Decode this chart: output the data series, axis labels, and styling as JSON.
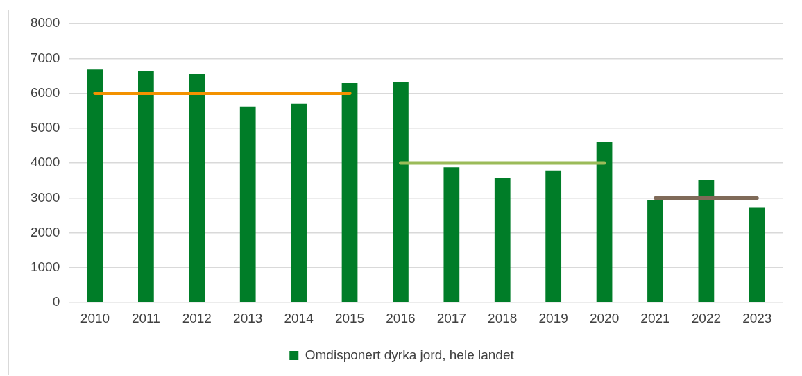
{
  "chart_data": {
    "type": "bar",
    "categories": [
      "2010",
      "2011",
      "2012",
      "2013",
      "2014",
      "2015",
      "2016",
      "2017",
      "2018",
      "2019",
      "2020",
      "2021",
      "2022",
      "2023"
    ],
    "series": [
      {
        "name": "Omdisponert dyrka jord, hele landet",
        "color": "#007d28",
        "values": [
          6680,
          6640,
          6550,
          5620,
          5700,
          6300,
          6330,
          3880,
          3580,
          3790,
          4600,
          2940,
          3520,
          2720
        ]
      },
      {
        "type": "line",
        "color": "#f39200",
        "values": [
          6000,
          6000,
          6000,
          6000,
          6000,
          6000,
          null,
          null,
          null,
          null,
          null,
          null,
          null,
          null
        ]
      },
      {
        "type": "line",
        "color": "#9bbb59",
        "values": [
          null,
          null,
          null,
          null,
          null,
          null,
          4000,
          4000,
          4000,
          4000,
          4000,
          null,
          null,
          null
        ]
      },
      {
        "type": "line",
        "color": "#7f6a58",
        "values": [
          null,
          null,
          null,
          null,
          null,
          null,
          null,
          null,
          null,
          null,
          null,
          3000,
          3000,
          3000
        ]
      }
    ],
    "ylim": [
      0,
      8000
    ],
    "yticks": [
      0,
      1000,
      2000,
      3000,
      4000,
      5000,
      6000,
      7000,
      8000
    ],
    "grid": "y",
    "legend": "bottom",
    "marker": "none"
  }
}
